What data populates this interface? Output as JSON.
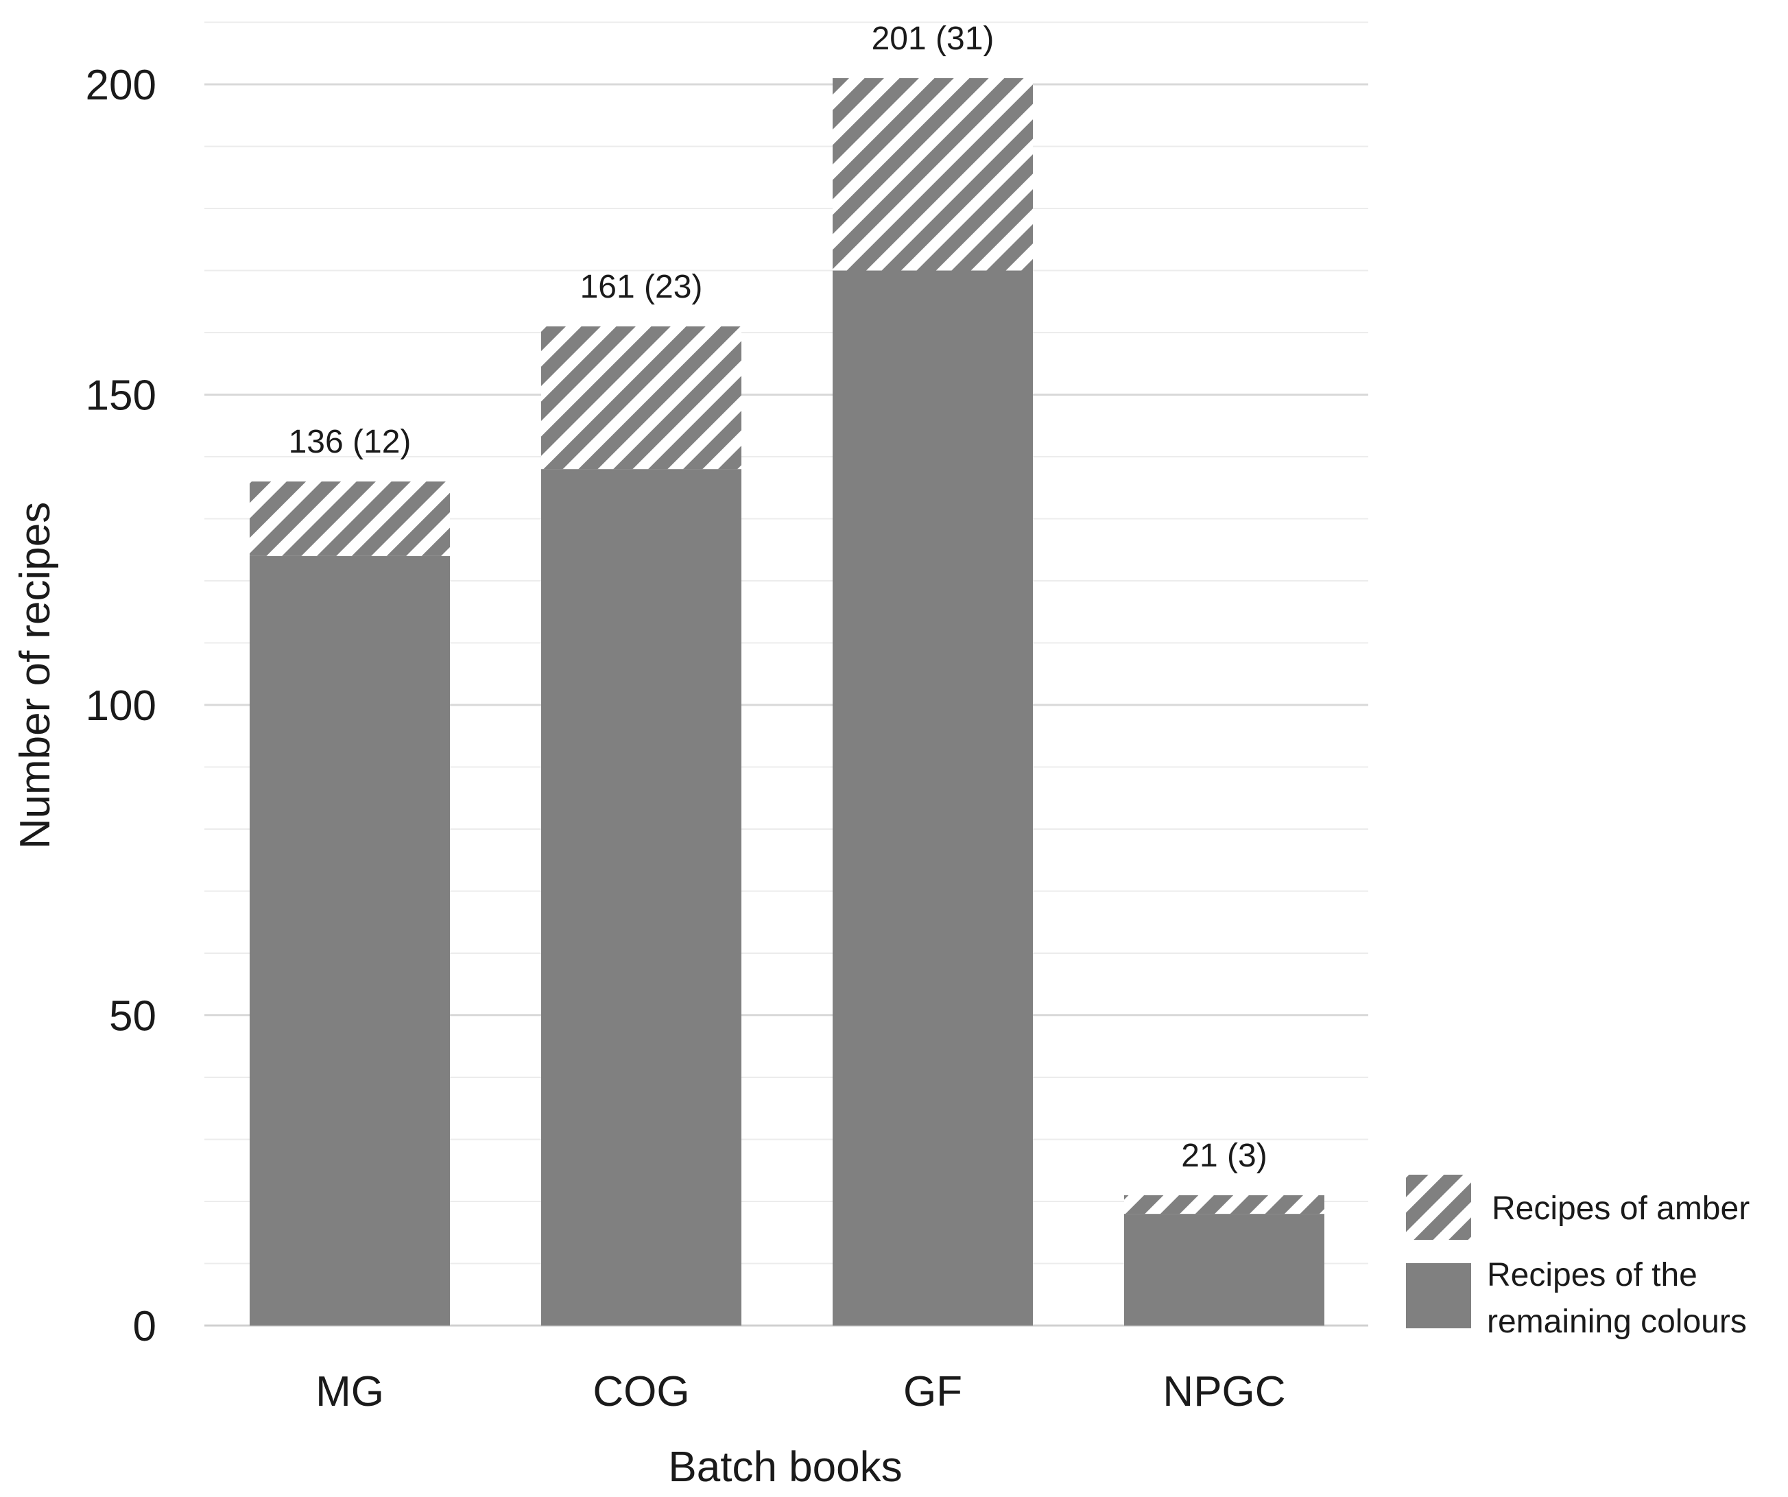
{
  "chart_data": {
    "type": "bar",
    "stacked": true,
    "title": "",
    "xlabel": "Batch books",
    "ylabel": "Number of recipes",
    "ylim": [
      0,
      210
    ],
    "yticks": [
      0,
      50,
      100,
      150,
      200
    ],
    "minor_grid_step": 10,
    "grid": true,
    "categories": [
      "MG",
      "COG",
      "GF",
      "NPGC"
    ],
    "series": [
      {
        "name": "Recipes of the remaining colours",
        "values": [
          124,
          138,
          170,
          18
        ],
        "color": "#808080",
        "pattern": "solid"
      },
      {
        "name": "Recipes of amber",
        "values": [
          12,
          23,
          31,
          3
        ],
        "color": "#808080",
        "pattern": "hatch"
      }
    ],
    "data_labels": [
      "136 (12)",
      "161 (23)",
      "201 (31)",
      "21 (3)"
    ],
    "legend": {
      "position": "bottom-right",
      "entries": [
        {
          "label": "Recipes of amber",
          "pattern": "hatch"
        },
        {
          "label_lines": [
            "Recipes of the",
            "remaining colours"
          ],
          "pattern": "solid"
        }
      ]
    },
    "colors": {
      "bar": "#808080",
      "hatch_bg": "#ffffff",
      "grid_major": "#d9d9d9",
      "grid_minor": "#ececec",
      "axis_line": "#d0d0d0",
      "text": "#1a1a1a"
    }
  }
}
